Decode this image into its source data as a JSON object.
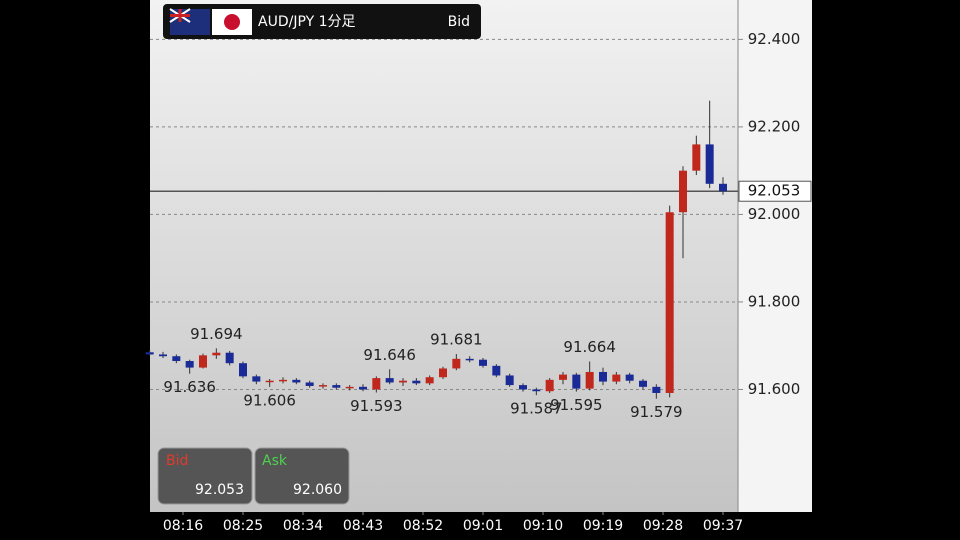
{
  "chart_data": {
    "type": "candlestick",
    "title": "AUD/JPY 1分足",
    "price_type": "Bid",
    "x": [
      "08:11",
      "08:13",
      "08:15",
      "08:17",
      "08:19",
      "08:21",
      "08:23",
      "08:25",
      "08:27",
      "08:29",
      "08:31",
      "08:33",
      "08:35",
      "08:37",
      "08:39",
      "08:41",
      "08:43",
      "08:45",
      "08:47",
      "08:49",
      "08:51",
      "08:53",
      "08:55",
      "08:57",
      "08:59",
      "09:01",
      "09:03",
      "09:05",
      "09:07",
      "09:09",
      "09:11",
      "09:13",
      "09:15",
      "09:17",
      "09:19",
      "09:21",
      "09:23",
      "09:25",
      "09:27",
      "09:29",
      "09:31",
      "09:33",
      "09:35",
      "09:37"
    ],
    "open": [
      91.685,
      91.68,
      91.676,
      91.665,
      91.65,
      91.678,
      91.684,
      91.66,
      91.63,
      91.618,
      91.62,
      91.622,
      91.616,
      91.608,
      91.61,
      91.604,
      91.606,
      91.6,
      91.626,
      91.616,
      91.62,
      91.614,
      91.628,
      91.648,
      91.67,
      91.668,
      91.654,
      91.632,
      91.61,
      91.6,
      91.596,
      91.622,
      91.634,
      91.602,
      91.64,
      91.618,
      91.634,
      91.62,
      91.606,
      91.592,
      92.005,
      92.1,
      92.16,
      92.07
    ],
    "high": [
      91.69,
      91.686,
      91.68,
      91.668,
      91.682,
      91.694,
      91.688,
      91.664,
      91.634,
      91.624,
      91.628,
      91.626,
      91.62,
      91.614,
      91.614,
      91.61,
      91.612,
      91.63,
      91.646,
      91.626,
      91.626,
      91.632,
      91.652,
      91.681,
      91.676,
      91.672,
      91.658,
      91.636,
      91.614,
      91.604,
      91.626,
      91.64,
      91.638,
      91.664,
      91.65,
      91.64,
      91.638,
      91.624,
      91.612,
      92.02,
      92.11,
      92.18,
      92.26,
      92.085
    ],
    "low": [
      91.678,
      91.672,
      91.66,
      91.636,
      91.648,
      91.67,
      91.655,
      91.626,
      91.612,
      91.606,
      91.614,
      91.612,
      91.604,
      91.602,
      91.6,
      91.598,
      91.596,
      91.593,
      91.612,
      91.608,
      91.61,
      91.61,
      91.624,
      91.644,
      91.662,
      91.65,
      91.628,
      91.606,
      91.595,
      91.587,
      91.592,
      91.612,
      91.595,
      91.598,
      91.61,
      91.612,
      91.614,
      91.6,
      91.579,
      91.582,
      91.9,
      92.09,
      92.06,
      92.045
    ],
    "close": [
      91.68,
      91.676,
      91.665,
      91.65,
      91.678,
      91.684,
      91.66,
      91.63,
      91.618,
      91.62,
      91.622,
      91.616,
      91.608,
      91.61,
      91.604,
      91.606,
      91.6,
      91.626,
      91.616,
      91.62,
      91.614,
      91.628,
      91.648,
      91.67,
      91.668,
      91.654,
      91.632,
      91.61,
      91.6,
      91.596,
      91.622,
      91.634,
      91.602,
      91.64,
      91.618,
      91.634,
      91.62,
      91.606,
      91.592,
      92.005,
      92.1,
      92.16,
      92.07,
      92.053
    ],
    "up_color": "#c0281e",
    "down_color": "#1a2a96",
    "ylim": [
      91.32,
      92.49
    ],
    "yticks": [
      {
        "value": 91.6,
        "label": "91.600"
      },
      {
        "value": 91.8,
        "label": "91.800"
      },
      {
        "value": 92.0,
        "label": "92.000"
      },
      {
        "value": 92.2,
        "label": "92.200"
      },
      {
        "value": 92.4,
        "label": "92.400"
      }
    ],
    "xticks": [
      "08:16",
      "08:25",
      "08:34",
      "08:43",
      "08:52",
      "09:01",
      "09:10",
      "09:19",
      "09:28",
      "09:37"
    ],
    "grid": true,
    "last_price": 92.053,
    "annotations": [
      {
        "x": "08:21",
        "value": 91.694,
        "position": "above"
      },
      {
        "x": "08:17",
        "value": 91.636,
        "position": "below"
      },
      {
        "x": "08:29",
        "value": 91.606,
        "position": "below"
      },
      {
        "x": "08:45",
        "value": 91.593,
        "position": "below"
      },
      {
        "x": "08:47",
        "value": 91.646,
        "position": "above"
      },
      {
        "x": "08:57",
        "value": 91.681,
        "position": "above"
      },
      {
        "x": "09:09",
        "value": 91.587,
        "position": "below"
      },
      {
        "x": "09:15",
        "value": 91.595,
        "position": "below"
      },
      {
        "x": "09:17",
        "value": 91.664,
        "position": "above"
      },
      {
        "x": "09:27",
        "value": 91.579,
        "position": "below"
      }
    ],
    "quote_panel": {
      "bid_label": "Bid",
      "bid": 92.053,
      "ask_label": "Ask",
      "ask": {
        "value": 92.06,
        "label": "92.060"
      }
    }
  }
}
